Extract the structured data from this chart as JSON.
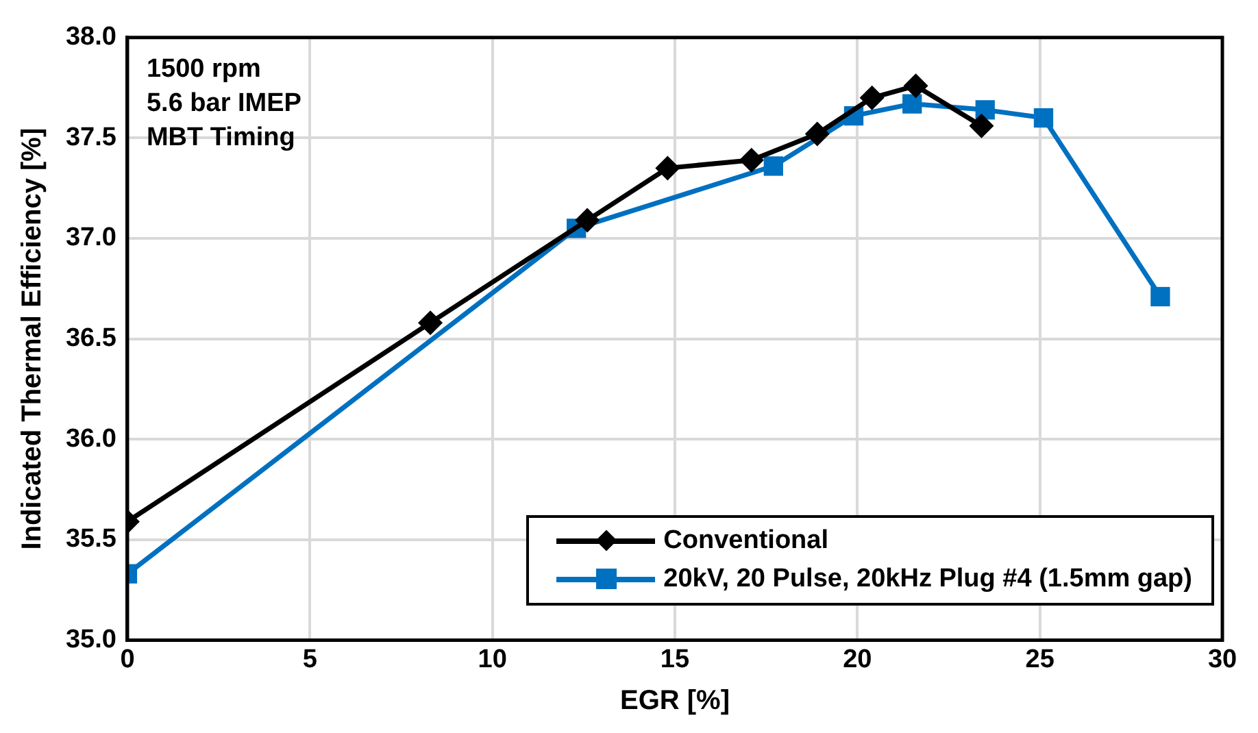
{
  "chart_data": {
    "type": "line",
    "xlabel": "EGR [%]",
    "ylabel": "Indicated Thermal Efficiency [%]",
    "annotations": [
      "1500 rpm",
      "5.6 bar IMEP",
      "MBT Timing"
    ],
    "series": [
      {
        "name": "Conventional",
        "color": "#000000",
        "marker": "diamond",
        "x": [
          0,
          8.3,
          12.6,
          14.8,
          17.1,
          18.9,
          20.4,
          21.6,
          23.4
        ],
        "values": [
          35.59,
          36.58,
          37.09,
          37.35,
          37.39,
          37.52,
          37.7,
          37.76,
          37.56
        ]
      },
      {
        "name": "20kV, 20 Pulse, 20kHz Plug #4 (1.5mm gap)",
        "color": "#0070c0",
        "marker": "square",
        "x": [
          0,
          12.3,
          17.7,
          19.9,
          21.5,
          23.5,
          25.1,
          28.3
        ],
        "values": [
          35.33,
          37.05,
          37.36,
          37.61,
          37.67,
          37.64,
          37.6,
          36.71
        ]
      }
    ],
    "xlim": [
      0,
      30
    ],
    "xticks": [
      0,
      5,
      10,
      15,
      20,
      25,
      30
    ],
    "ylim": [
      35,
      38
    ],
    "yticks": [
      {
        "value": 35,
        "label": "35.0"
      },
      {
        "value": 35.5,
        "label": "35.5"
      },
      {
        "value": 36,
        "label": "36.0"
      },
      {
        "value": 36.5,
        "label": "36.5"
      },
      {
        "value": 37,
        "label": "37.0"
      },
      {
        "value": 37.5,
        "label": "37.5"
      },
      {
        "value": 38,
        "label": "38.0"
      }
    ],
    "grid": true,
    "legend": "bottom right",
    "line_style": "solid"
  }
}
